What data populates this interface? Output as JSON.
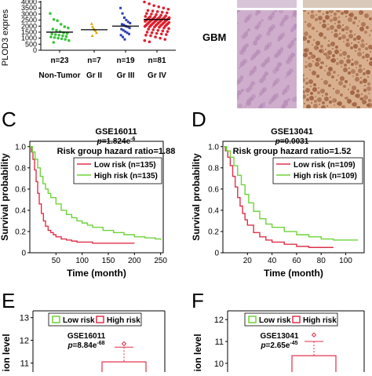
{
  "panel_labels": {
    "c": "C",
    "d": "D",
    "e": "E",
    "f": "F"
  },
  "histology": {
    "label": "GBM",
    "stains": [
      "#b98fb8",
      "#9a5a3a"
    ]
  },
  "chart_data": [
    {
      "id": "scatter-plod3",
      "type": "scatter",
      "ylabel": "PLOD3 expres",
      "yticks": [
        0,
        500,
        1000,
        1500,
        2000,
        2500,
        3000,
        3500,
        4000
      ],
      "ylim": [
        0,
        4100
      ],
      "categories": [
        "Non-Tumor",
        "Gr II",
        "Gr III",
        "Gr IV"
      ],
      "counts": [
        "n=23",
        "n=7",
        "n=19",
        "n=81"
      ],
      "colors": [
        "#3cc43c",
        "#d9a800",
        "#2a3fb0",
        "#e01e2d"
      ],
      "medians": [
        1500,
        1700,
        2000,
        2550
      ],
      "points": [
        [
          3050,
          2550,
          2450,
          2150,
          1950,
          1850,
          1750,
          1650,
          1550,
          1450,
          1400,
          1350,
          1300,
          1250,
          1200,
          1150,
          1100,
          1050,
          1000,
          950,
          900,
          800,
          650
        ],
        [
          2200,
          1950,
          1800,
          1700,
          1600,
          1450,
          1200
        ],
        [
          3500,
          3050,
          2700,
          2500,
          2350,
          2250,
          2150,
          2100,
          2000,
          1950,
          1850,
          1750,
          1650,
          1550,
          1450,
          1350,
          1250,
          1100,
          900
        ],
        [
          4000,
          3850,
          3700,
          3600,
          3500,
          3400,
          3300,
          3250,
          3200,
          3150,
          3100,
          3050,
          3000,
          2950,
          2900,
          2850,
          2800,
          2780,
          2760,
          2740,
          2720,
          2700,
          2680,
          2660,
          2640,
          2620,
          2600,
          2580,
          2560,
          2550,
          2540,
          2520,
          2500,
          2480,
          2460,
          2440,
          2420,
          2400,
          2380,
          2360,
          2340,
          2320,
          2300,
          2280,
          2260,
          2240,
          2220,
          2200,
          2180,
          2160,
          2140,
          2120,
          2100,
          2080,
          2060,
          2040,
          2020,
          2000,
          1980,
          1950,
          1920,
          1900,
          1850,
          1800,
          1750,
          1700,
          1650,
          1600,
          1550,
          1500,
          1450,
          1400,
          1350,
          1300,
          1250,
          1200,
          1100,
          1000,
          900,
          800,
          700
        ]
      ]
    },
    {
      "id": "km-gse16011",
      "type": "line",
      "annotation": [
        "GSE16011",
        "p=1.824e",
        "-6",
        "Risk group hazard ratio=1.88"
      ],
      "ylabel": "Survival probability",
      "xlabel": "Time (month)",
      "xticks": [
        50,
        100,
        150,
        200,
        250
      ],
      "yticks": [
        0,
        0.2,
        0.4,
        0.6,
        0.8,
        1.0
      ],
      "ytick_labels": [
        "0",
        "0.2",
        "0.4",
        "0.6",
        "0.8",
        "1.0"
      ],
      "xlim": [
        0,
        255
      ],
      "ylim": [
        0,
        1.05
      ],
      "legend": [
        "Low risk (n=135)",
        "High risk (n=135)"
      ],
      "series": [
        {
          "name": "Low risk (n=135)",
          "color": "#e0304a",
          "x": [
            0,
            3,
            6,
            9,
            12,
            15,
            18,
            22,
            26,
            30,
            35,
            40,
            45,
            50,
            60,
            70,
            80,
            90,
            100,
            120,
            150,
            180,
            200
          ],
          "y": [
            1.0,
            0.95,
            0.88,
            0.78,
            0.67,
            0.56,
            0.46,
            0.37,
            0.3,
            0.25,
            0.21,
            0.19,
            0.17,
            0.15,
            0.13,
            0.12,
            0.11,
            0.1,
            0.1,
            0.09,
            0.09,
            0.09,
            0.09
          ]
        },
        {
          "name": "High risk (n=135)",
          "color": "#6fd33a",
          "x": [
            0,
            5,
            10,
            15,
            20,
            25,
            30,
            35,
            40,
            50,
            60,
            70,
            80,
            90,
            100,
            110,
            120,
            140,
            160,
            180,
            200,
            220,
            240,
            250
          ],
          "y": [
            1.0,
            0.95,
            0.88,
            0.8,
            0.72,
            0.65,
            0.6,
            0.56,
            0.52,
            0.46,
            0.4,
            0.36,
            0.33,
            0.3,
            0.28,
            0.26,
            0.24,
            0.21,
            0.19,
            0.17,
            0.15,
            0.14,
            0.13,
            0.12
          ]
        }
      ]
    },
    {
      "id": "km-gse13041",
      "type": "line",
      "annotation": [
        "GSE13041",
        "p=0.0031",
        "",
        "Risk group hazard ratio=1.52"
      ],
      "ylabel": "Survival probability",
      "xlabel": "Time (month)",
      "xticks": [
        20,
        40,
        60,
        80,
        100
      ],
      "yticks": [
        0,
        0.2,
        0.4,
        0.6,
        0.8,
        1.0
      ],
      "ytick_labels": [
        "0",
        "0.2",
        "0.4",
        "0.6",
        "0.8",
        "1.0"
      ],
      "xlim": [
        0,
        115
      ],
      "ylim": [
        0,
        1.05
      ],
      "legend": [
        "Low risk (n=109)",
        "High risk (n=109)"
      ],
      "series": [
        {
          "name": "Low risk (n=109)",
          "color": "#e0304a",
          "x": [
            0,
            2,
            4,
            6,
            8,
            10,
            12,
            14,
            16,
            18,
            20,
            25,
            30,
            35,
            40,
            50,
            60,
            70,
            80,
            90
          ],
          "y": [
            1.0,
            0.96,
            0.9,
            0.82,
            0.72,
            0.62,
            0.52,
            0.44,
            0.37,
            0.31,
            0.26,
            0.19,
            0.15,
            0.12,
            0.1,
            0.08,
            0.06,
            0.05,
            0.05,
            0.05
          ]
        },
        {
          "name": "High risk (n=109)",
          "color": "#6fd33a",
          "x": [
            0,
            3,
            6,
            9,
            12,
            15,
            18,
            21,
            25,
            30,
            35,
            40,
            50,
            60,
            70,
            80,
            90,
            100,
            110
          ],
          "y": [
            1.0,
            0.96,
            0.9,
            0.82,
            0.73,
            0.64,
            0.55,
            0.47,
            0.39,
            0.32,
            0.27,
            0.24,
            0.2,
            0.17,
            0.15,
            0.13,
            0.12,
            0.12,
            0.12
          ]
        }
      ]
    },
    {
      "id": "box-gse16011",
      "type": "box",
      "annotation": [
        "GSE16011",
        "p=8.84e",
        "-68"
      ],
      "ylabel": "ssion level",
      "yticks": [
        11,
        12,
        13
      ],
      "ylim": [
        10.6,
        13.3
      ],
      "legend": [
        "Low risk",
        "High risk"
      ],
      "legend_colors": [
        "#6fd33a",
        "#e0304a"
      ],
      "box": {
        "series": "High risk",
        "whisker_high": 11.7,
        "q3": 11.05,
        "outliers": [
          11.85
        ]
      }
    },
    {
      "id": "box-gse13041",
      "type": "box",
      "annotation": [
        "GSE13041",
        "p=2.65e",
        "-45"
      ],
      "ylabel": "ssion level",
      "yticks": [
        10,
        11,
        12
      ],
      "ylim": [
        9.6,
        12.4
      ],
      "legend": [
        "Low risk",
        "High risk"
      ],
      "legend_colors": [
        "#6fd33a",
        "#e0304a"
      ],
      "box": {
        "series": "High risk",
        "whisker_high": 11.0,
        "q3": 10.35,
        "outliers": [
          11.3
        ]
      }
    }
  ]
}
